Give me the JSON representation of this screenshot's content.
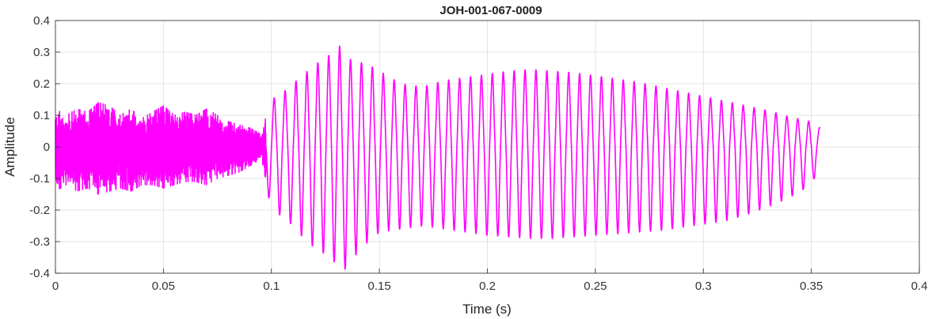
{
  "chart_data": {
    "type": "line",
    "title": "JOH-001-067-0009",
    "xlabel": "Time (s)",
    "ylabel": "Amplitude",
    "xlim": [
      0,
      0.4
    ],
    "ylim": [
      -0.4,
      0.4
    ],
    "xticks": [
      0,
      0.05,
      0.1,
      0.15,
      0.2,
      0.25,
      0.3,
      0.35,
      0.4
    ],
    "yticks": [
      0.4,
      0.3,
      0.2,
      0.1,
      0,
      -0.1,
      -0.2,
      -0.3,
      -0.4
    ],
    "xtick_labels": [
      "0",
      "0.05",
      "0.1",
      "0.15",
      "0.2",
      "0.25",
      "0.3",
      "0.35",
      "0.4"
    ],
    "ytick_labels": [
      "0.4",
      "0.3",
      "0.2",
      "0.1",
      "0",
      "-0.1",
      "-0.2",
      "-0.3",
      "-0.4"
    ],
    "grid": true,
    "series": [
      {
        "color": "#ff00ff",
        "x": [
          0,
          0.005,
          0.01,
          0.015,
          0.02,
          0.025,
          0.03,
          0.035,
          0.04,
          0.045,
          0.05,
          0.055,
          0.06,
          0.065,
          0.07,
          0.075,
          0.08,
          0.085,
          0.09,
          0.095,
          0.1,
          0.105,
          0.11,
          0.115,
          0.12,
          0.125,
          0.13,
          0.1315,
          0.135,
          0.14,
          0.145,
          0.15,
          0.16,
          0.17,
          0.18,
          0.19,
          0.2,
          0.21,
          0.22,
          0.23,
          0.24,
          0.25,
          0.26,
          0.27,
          0.28,
          0.29,
          0.3,
          0.31,
          0.32,
          0.33,
          0.34,
          0.35,
          0.354
        ],
        "y_max": [
          0.12,
          0.1,
          0.12,
          0.11,
          0.14,
          0.13,
          0.1,
          0.12,
          0.09,
          0.11,
          0.13,
          0.1,
          0.11,
          0.1,
          0.12,
          0.1,
          0.08,
          0.07,
          0.06,
          0.04,
          0.15,
          0.17,
          0.2,
          0.23,
          0.26,
          0.28,
          0.31,
          0.32,
          0.28,
          0.27,
          0.26,
          0.24,
          0.2,
          0.19,
          0.21,
          0.22,
          0.23,
          0.24,
          0.245,
          0.24,
          0.235,
          0.225,
          0.215,
          0.205,
          0.19,
          0.175,
          0.16,
          0.145,
          0.13,
          0.115,
          0.095,
          0.08,
          0.06
        ],
        "y_min": [
          -0.14,
          -0.12,
          -0.14,
          -0.13,
          -0.15,
          -0.14,
          -0.13,
          -0.14,
          -0.12,
          -0.12,
          -0.13,
          -0.12,
          -0.11,
          -0.11,
          -0.12,
          -0.1,
          -0.09,
          -0.08,
          -0.06,
          -0.04,
          -0.2,
          -0.22,
          -0.25,
          -0.29,
          -0.32,
          -0.34,
          -0.37,
          -0.35,
          -0.4,
          -0.33,
          -0.3,
          -0.27,
          -0.26,
          -0.25,
          -0.26,
          -0.27,
          -0.28,
          -0.285,
          -0.29,
          -0.29,
          -0.285,
          -0.28,
          -0.275,
          -0.27,
          -0.265,
          -0.255,
          -0.245,
          -0.235,
          -0.215,
          -0.19,
          -0.16,
          -0.12,
          -0.06
        ]
      }
    ]
  }
}
